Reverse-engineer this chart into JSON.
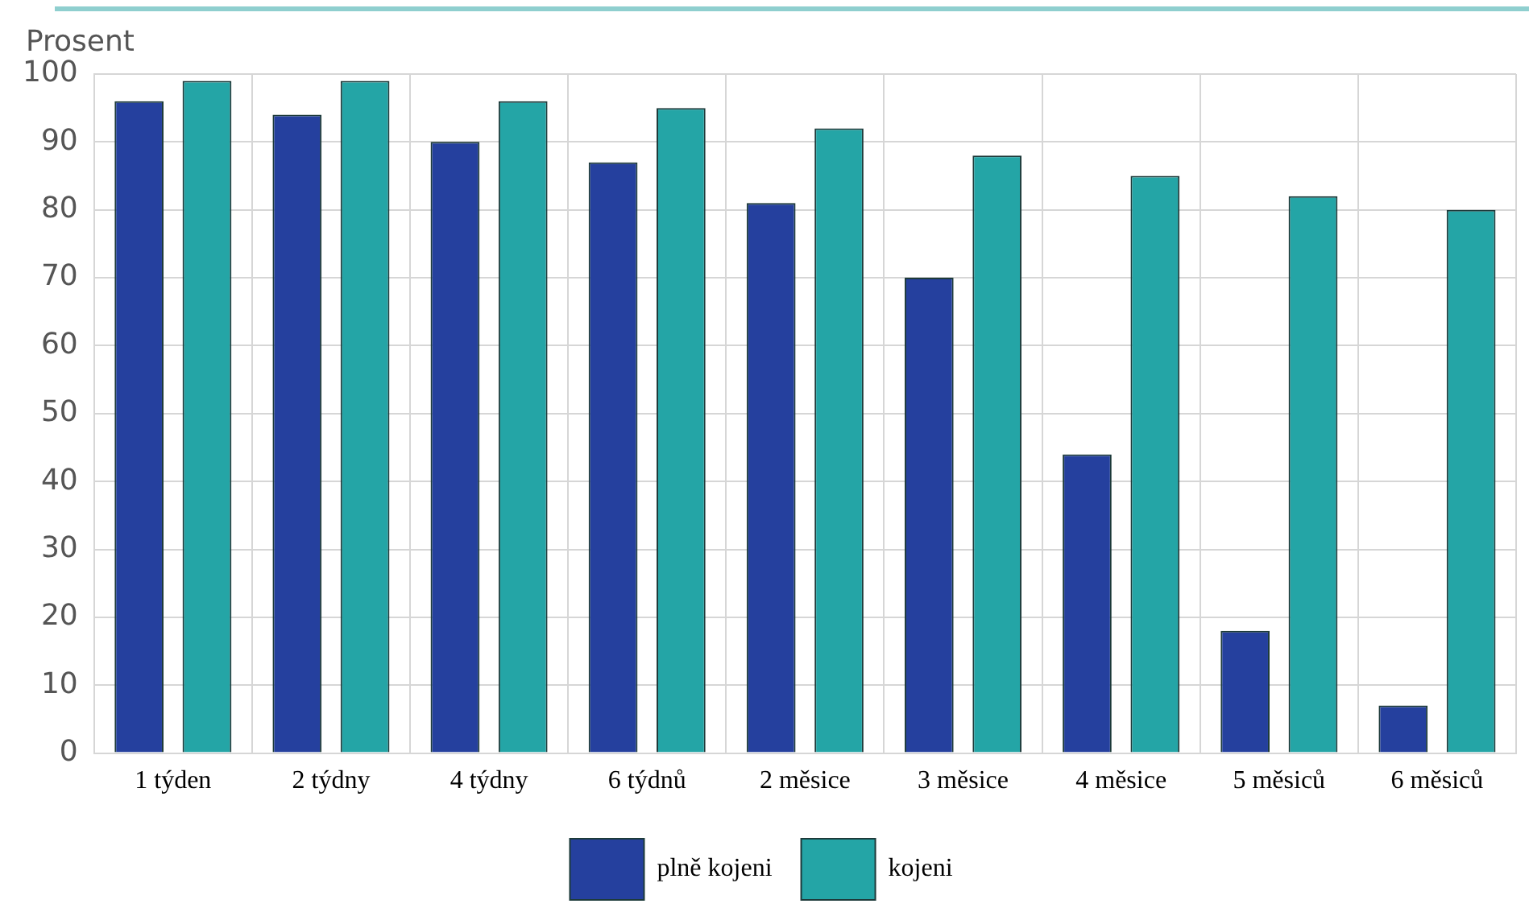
{
  "chart_data": {
    "type": "bar",
    "ylabel": "Prosent",
    "categories": [
      "1 týden",
      "2 týdny",
      "4 týdny",
      "6 týdnů",
      "2 měsice",
      "3 měsice",
      "4 měsice",
      "5 měsiců",
      "6 měsiců"
    ],
    "series": [
      {
        "name": "plně kojeni",
        "color": "#25409e",
        "values": [
          96,
          94,
          90,
          87,
          81,
          70,
          44,
          18,
          7
        ]
      },
      {
        "name": "kojeni",
        "color": "#24a5a6",
        "values": [
          99,
          99,
          96,
          95,
          92,
          88,
          85,
          82,
          80
        ]
      }
    ],
    "ylim": [
      0,
      100
    ],
    "yticks": [
      0,
      10,
      20,
      30,
      40,
      50,
      60,
      70,
      80,
      90,
      100
    ],
    "grid": true,
    "legend": "bottom"
  }
}
